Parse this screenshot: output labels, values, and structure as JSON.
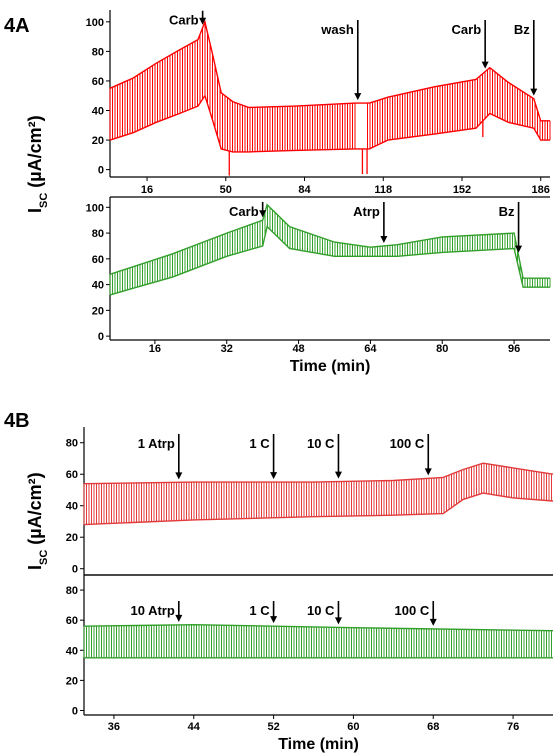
{
  "figure": {
    "panel_a": "4A",
    "panel_b": "4B"
  },
  "chart_data": [
    {
      "type": "line",
      "panel": "4A",
      "color": "#ff0000",
      "ylabel_main": "I",
      "ylabel_sub": "SC",
      "ylabel_unit": " (µA/cm²)",
      "ylim": [
        -5,
        108
      ],
      "xlim": [
        0,
        190
      ],
      "yticks": [
        0,
        20,
        40,
        60,
        80,
        100
      ],
      "xticks": [
        16,
        50,
        84,
        118,
        152,
        186
      ],
      "envelope": [
        {
          "x": 0,
          "hi": 55,
          "lo": 20
        },
        {
          "x": 10,
          "hi": 62,
          "lo": 25
        },
        {
          "x": 20,
          "hi": 72,
          "lo": 32
        },
        {
          "x": 30,
          "hi": 81,
          "lo": 38
        },
        {
          "x": 38,
          "hi": 88,
          "lo": 43
        },
        {
          "x": 41,
          "hi": 100,
          "lo": 50
        },
        {
          "x": 44,
          "hi": 80,
          "lo": 35
        },
        {
          "x": 48,
          "hi": 52,
          "lo": 14
        },
        {
          "x": 53,
          "hi": 46,
          "lo": 12
        },
        {
          "x": 60,
          "hi": 42,
          "lo": 12
        },
        {
          "x": 80,
          "hi": 43,
          "lo": 13
        },
        {
          "x": 106,
          "hi": 45,
          "lo": 14
        },
        {
          "x": 112,
          "hi": 45,
          "lo": 14
        },
        {
          "x": 120,
          "hi": 49,
          "lo": 20
        },
        {
          "x": 140,
          "hi": 56,
          "lo": 24
        },
        {
          "x": 158,
          "hi": 61,
          "lo": 28
        },
        {
          "x": 164,
          "hi": 69,
          "lo": 38
        },
        {
          "x": 172,
          "hi": 59,
          "lo": 32
        },
        {
          "x": 183,
          "hi": 48,
          "lo": 28
        },
        {
          "x": 186,
          "hi": 33,
          "lo": 20
        },
        {
          "x": 190,
          "hi": 33,
          "lo": 20
        }
      ],
      "gaps": [
        [
          106,
          111
        ]
      ],
      "spikes": [
        {
          "x": 51.5,
          "y": -4
        },
        {
          "x": 109,
          "y": -3
        },
        {
          "x": 111,
          "y": -3
        },
        {
          "x": 161,
          "y": 22
        }
      ],
      "annotations": [
        {
          "label": "Carb",
          "x": 40
        },
        {
          "label": "wash",
          "x": 107
        },
        {
          "label": "Carb",
          "x": 162
        },
        {
          "label": "Bz",
          "x": 183
        }
      ]
    },
    {
      "type": "line",
      "panel": "4A",
      "color": "#33a02c",
      "xlabel": "Time (min)",
      "ylim": [
        -3,
        108
      ],
      "xlim": [
        6,
        104
      ],
      "yticks": [
        0,
        20,
        40,
        60,
        80,
        100
      ],
      "xticks": [
        16,
        32,
        48,
        64,
        80,
        96
      ],
      "envelope": [
        {
          "x": 6,
          "hi": 48,
          "lo": 32
        },
        {
          "x": 20,
          "hi": 64,
          "lo": 46
        },
        {
          "x": 32,
          "hi": 80,
          "lo": 62
        },
        {
          "x": 40,
          "hi": 90,
          "lo": 70
        },
        {
          "x": 41,
          "hi": 102,
          "lo": 85
        },
        {
          "x": 46,
          "hi": 85,
          "lo": 68
        },
        {
          "x": 56,
          "hi": 73,
          "lo": 62
        },
        {
          "x": 64,
          "hi": 69,
          "lo": 62
        },
        {
          "x": 70,
          "hi": 71,
          "lo": 62
        },
        {
          "x": 80,
          "hi": 77,
          "lo": 65
        },
        {
          "x": 96,
          "hi": 80,
          "lo": 68
        },
        {
          "x": 98,
          "hi": 45,
          "lo": 38
        },
        {
          "x": 104,
          "hi": 45,
          "lo": 38
        }
      ],
      "annotations": [
        {
          "label": "Carb",
          "x": 40
        },
        {
          "label": "Atrp",
          "x": 67
        },
        {
          "label": "Bz",
          "x": 97
        }
      ]
    },
    {
      "type": "line",
      "panel": "4B",
      "color": "#e33b3b",
      "ylabel_main": "I",
      "ylabel_sub": "SC",
      "ylabel_unit": " (µA/cm²)",
      "ylim": [
        -4,
        90
      ],
      "xlim": [
        33,
        80
      ],
      "yticks": [
        0,
        20,
        40,
        60,
        80
      ],
      "envelope": [
        {
          "x": 33,
          "hi": 54,
          "lo": 28
        },
        {
          "x": 44,
          "hi": 55,
          "lo": 31
        },
        {
          "x": 56,
          "hi": 55,
          "lo": 33
        },
        {
          "x": 64,
          "hi": 56,
          "lo": 34
        },
        {
          "x": 69,
          "hi": 58,
          "lo": 35
        },
        {
          "x": 71,
          "hi": 63,
          "lo": 44
        },
        {
          "x": 73,
          "hi": 67,
          "lo": 48
        },
        {
          "x": 76,
          "hi": 64,
          "lo": 45
        },
        {
          "x": 80,
          "hi": 60,
          "lo": 43
        }
      ],
      "annotations": [
        {
          "label": "1 Atrp",
          "x": 42.5
        },
        {
          "label": "1 C",
          "x": 52
        },
        {
          "label": "10 C",
          "x": 58.5
        },
        {
          "label": "100 C",
          "x": 67.5
        }
      ]
    },
    {
      "type": "line",
      "panel": "4B",
      "color": "#33a02c",
      "xlabel": "Time (min)",
      "ylim": [
        -3,
        90
      ],
      "xlim": [
        33,
        80
      ],
      "yticks": [
        0,
        20,
        40,
        60,
        80
      ],
      "xticks": [
        36,
        44,
        52,
        60,
        68,
        76
      ],
      "envelope": [
        {
          "x": 33,
          "hi": 56,
          "lo": 35
        },
        {
          "x": 44,
          "hi": 57,
          "lo": 35
        },
        {
          "x": 60,
          "hi": 55,
          "lo": 35
        },
        {
          "x": 80,
          "hi": 53,
          "lo": 35
        }
      ],
      "annotations": [
        {
          "label": "10 Atrp",
          "x": 42.5
        },
        {
          "label": "1 C",
          "x": 52
        },
        {
          "label": "10 C",
          "x": 58.5
        },
        {
          "label": "100 C",
          "x": 68
        }
      ]
    }
  ]
}
